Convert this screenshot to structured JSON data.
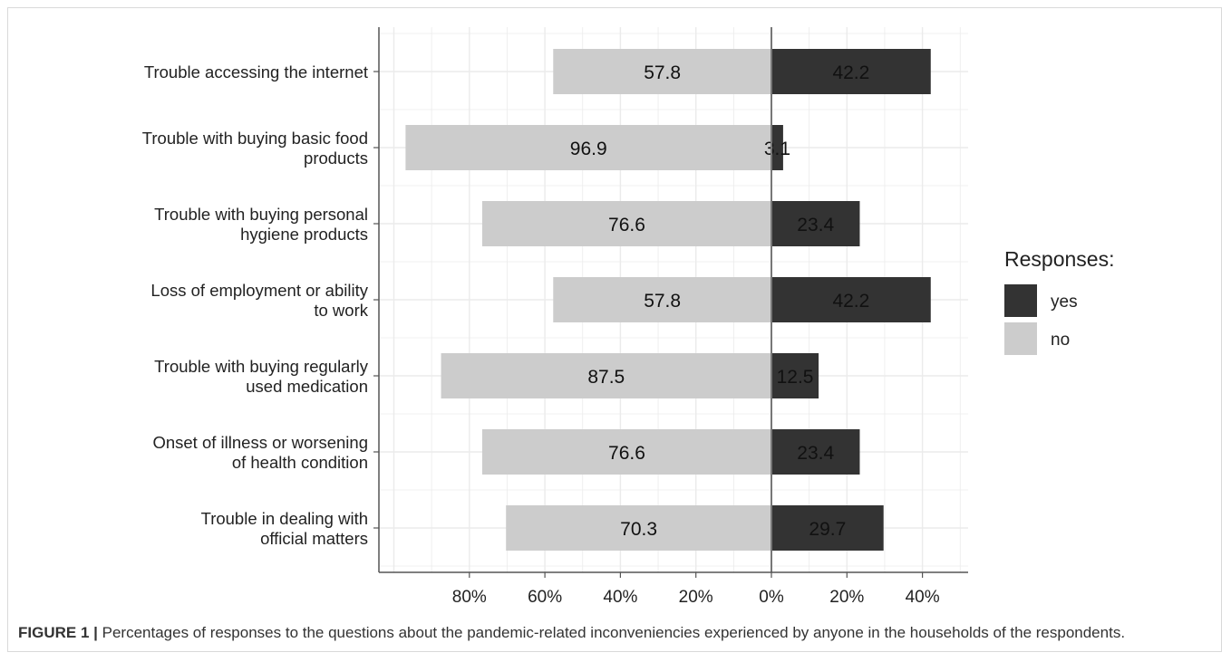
{
  "chart_data": {
    "type": "bar",
    "orientation": "horizontal-diverging",
    "categories": [
      [
        "Trouble accessing the internet"
      ],
      [
        "Trouble with buying basic food",
        "products"
      ],
      [
        "Trouble with buying personal",
        "hygiene products"
      ],
      [
        "Loss of employment or ability",
        "to work"
      ],
      [
        "Trouble with buying regularly",
        "used medication"
      ],
      [
        "Onset of illness or worsening",
        "of health condition"
      ],
      [
        "Trouble in dealing with",
        "official matters"
      ]
    ],
    "series": [
      {
        "name": "yes",
        "values": [
          42.2,
          3.1,
          23.4,
          42.2,
          12.5,
          23.4,
          29.7
        ],
        "color": "#333333",
        "direction": "right"
      },
      {
        "name": "no",
        "values": [
          57.8,
          96.9,
          76.6,
          57.8,
          87.5,
          76.6,
          70.3
        ],
        "color": "#cccccc",
        "direction": "left"
      }
    ],
    "x_ticks": [
      -80,
      -60,
      -40,
      -20,
      0,
      20,
      40
    ],
    "x_tick_labels": [
      "80%",
      "60%",
      "40%",
      "20%",
      "0%",
      "20%",
      "40%"
    ],
    "xlim": [
      -103,
      52
    ],
    "grid": true,
    "legend": {
      "title": "Responses:",
      "placement": "right"
    }
  },
  "caption": {
    "label": "FIGURE 1 |",
    "text": " Percentages of responses to the questions about the pandemic-related inconveniencies experienced by anyone in the households of the respondents."
  }
}
